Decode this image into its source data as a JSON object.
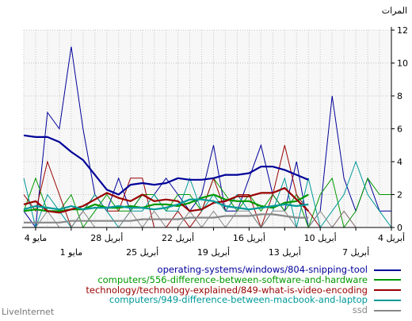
{
  "footer": {
    "brand": "LiveInternet"
  },
  "chart_data": {
    "type": "line",
    "title": "",
    "ylabel": "المرات",
    "xlabel": "",
    "ylim": [
      0,
      12
    ],
    "yticks": [
      0,
      2,
      4,
      6,
      8,
      10,
      12
    ],
    "y_axis_side": "right",
    "x_axis_direction": "right-to-left",
    "grid": true,
    "legend_position": "bottom-right",
    "x_tick_labels": [
      {
        "day": 0,
        "text": "4 أبريل"
      },
      {
        "day": 3,
        "text": "7 أبريل"
      },
      {
        "day": 6,
        "text": "10 أبريل"
      },
      {
        "day": 9,
        "text": "13 أبريل"
      },
      {
        "day": 12,
        "text": "16 أبريل"
      },
      {
        "day": 15,
        "text": "19 أبريل"
      },
      {
        "day": 18,
        "text": "22 أبريل"
      },
      {
        "day": 21,
        "text": "25 أبريل"
      },
      {
        "day": 24,
        "text": "28 أبريل"
      },
      {
        "day": 27,
        "text": "1 مايو"
      },
      {
        "day": 30,
        "text": "4 مايو"
      }
    ],
    "series": [
      {
        "name": "operating-systems/windows/804-snipping-tool",
        "color": "#000099",
        "values": [
          1,
          1,
          3,
          1,
          3,
          8,
          1,
          0,
          4,
          1,
          2,
          5,
          3,
          1,
          1,
          5,
          2,
          1,
          2,
          3,
          2,
          2,
          1,
          3,
          1,
          2,
          6,
          11,
          6,
          7,
          0,
          1
        ],
        "trend": [
          null,
          null,
          null,
          null,
          null,
          null,
          null,
          2.9,
          3.2,
          3.5,
          3.7,
          3.7,
          3.3,
          3.2,
          3.2,
          3.0,
          2.9,
          2.9,
          3.0,
          2.7,
          2.6,
          2.7,
          2.6,
          2.0,
          2.3,
          3.2,
          4.1,
          4.6,
          5.2,
          5.5,
          5.5,
          5.6
        ]
      },
      {
        "name": "computers/556-difference-between-software-and-hardware",
        "color": "#009900",
        "values": [
          2,
          2,
          3,
          1,
          0,
          3,
          2,
          0,
          2,
          1,
          2,
          1,
          2,
          1,
          2,
          3,
          1,
          2,
          2,
          1,
          2,
          2,
          1,
          1,
          2,
          1,
          0,
          2,
          1,
          1,
          3,
          1
        ],
        "trend": [
          null,
          null,
          null,
          null,
          null,
          null,
          null,
          2.0,
          1.6,
          1.5,
          1.2,
          1.3,
          1.6,
          1.6,
          1.7,
          2.0,
          1.8,
          1.5,
          1.3,
          1.4,
          1.4,
          1.2,
          1.3,
          1.2,
          1.2,
          1.4,
          1.1,
          1.1,
          1.0,
          1.0,
          1.1,
          1.0
        ]
      },
      {
        "name": "technology/technology-explained/849-what-is-video-encoding",
        "color": "#990000",
        "values": [
          0,
          0,
          0,
          0,
          1,
          0,
          0,
          1,
          2,
          5,
          2,
          0,
          2,
          2,
          1,
          3,
          1,
          0,
          1,
          0,
          0,
          3,
          3,
          1,
          1,
          2,
          1,
          0,
          2,
          4,
          1,
          2
        ],
        "trend": [
          null,
          null,
          null,
          null,
          null,
          null,
          null,
          1.0,
          1.7,
          2.4,
          2.1,
          2.1,
          1.9,
          1.9,
          1.6,
          1.5,
          1.1,
          1.0,
          1.6,
          1.7,
          1.6,
          2.0,
          1.6,
          1.8,
          2.1,
          1.7,
          1.3,
          1.1,
          0.9,
          1.0,
          1.6,
          1.4
        ]
      },
      {
        "name": "computers/949-difference-between-macbook-and-laptop",
        "color": "#009999",
        "values": [
          0,
          1,
          2,
          4,
          2,
          1,
          0,
          3,
          0,
          3,
          1,
          0,
          1,
          2,
          1,
          2,
          1,
          3,
          1,
          1,
          2,
          1,
          1,
          0,
          1,
          2,
          1,
          0,
          1,
          2,
          0,
          3
        ],
        "trend": [
          null,
          null,
          null,
          null,
          null,
          null,
          null,
          1.4,
          1.3,
          1.4,
          1.3,
          1.2,
          1.1,
          1.2,
          1.3,
          1.6,
          1.7,
          1.7,
          1.4,
          1.2,
          1.1,
          1.2,
          1.2,
          1.3,
          1.2,
          1.2,
          1.1,
          1.3,
          1.1,
          1.2,
          1.3,
          1.1
        ]
      },
      {
        "name": "ssd",
        "color": "#888888",
        "values": [
          0,
          0,
          0,
          0,
          1,
          0,
          1,
          0,
          0,
          1,
          1,
          0,
          1,
          1,
          0,
          1,
          0,
          1,
          0,
          0,
          1,
          0,
          1,
          0,
          0,
          0,
          1,
          0,
          0,
          1,
          0,
          0
        ],
        "trend": [
          null,
          null,
          null,
          null,
          null,
          null,
          null,
          0.6,
          0.6,
          0.7,
          0.8,
          0.8,
          0.7,
          0.7,
          0.7,
          0.6,
          0.6,
          0.6,
          0.5,
          0.5,
          0.5,
          0.5,
          0.4,
          0.4,
          0.4,
          0.4,
          0.4,
          0.4,
          0.3,
          0.3,
          0.3,
          0.3
        ]
      }
    ]
  }
}
